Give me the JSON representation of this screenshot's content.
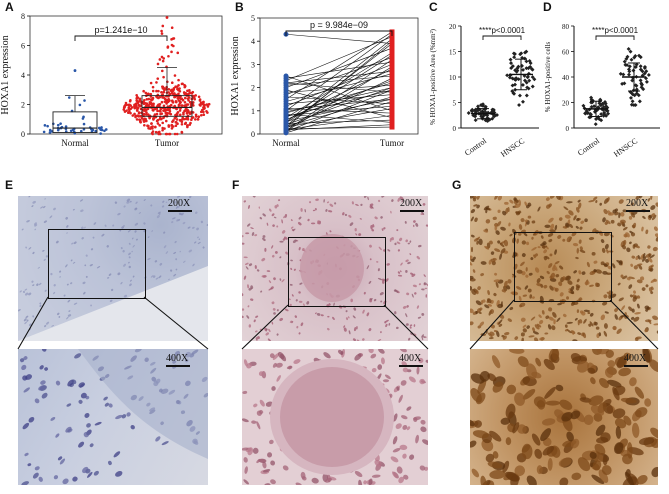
{
  "panels": {
    "A": {
      "label": "A"
    },
    "B": {
      "label": "B"
    },
    "C": {
      "label": "C"
    },
    "D": {
      "label": "D"
    },
    "E": {
      "label": "E",
      "mag_top": "200X",
      "mag_bottom": "400X"
    },
    "F": {
      "label": "F",
      "mag_top": "200X",
      "mag_bottom": "400X"
    },
    "G": {
      "label": "G",
      "mag_top": "200X",
      "mag_bottom": "400X"
    }
  },
  "colors": {
    "normal": "#2a57a8",
    "tumor": "#e02020",
    "control": "#222222",
    "hnscc": "#222222"
  },
  "chart_data": [
    {
      "id": "A",
      "type": "scatter",
      "categories": [
        "Normal",
        "Tumor"
      ],
      "ylabel": "HOXA1 expression",
      "ylim": [
        0,
        8
      ],
      "yticks": [
        0,
        2,
        4,
        6,
        8
      ],
      "annotation": "p=1.241e−10",
      "series": [
        {
          "name": "Normal",
          "median": 0.4,
          "q1": 0.1,
          "q3": 1.5,
          "whisker_low": 0.0,
          "whisker_high": 2.6,
          "max": 4.3,
          "n": 44
        },
        {
          "name": "Tumor",
          "median": 1.8,
          "q1": 1.2,
          "q3": 2.6,
          "whisker_low": 0.0,
          "whisker_high": 4.5,
          "max": 7.9,
          "n": 500
        }
      ]
    },
    {
      "id": "B",
      "type": "line",
      "categories": [
        "Normal",
        "Tumor"
      ],
      "ylabel": "HOXA1 expression",
      "ylim": [
        0,
        5
      ],
      "yticks": [
        0,
        1,
        2,
        3,
        4,
        5
      ],
      "annotation": "p = 9.984e−09",
      "pairs": [
        [
          0.1,
          1.9
        ],
        [
          0.15,
          3.2
        ],
        [
          0.2,
          0.8
        ],
        [
          0.25,
          2.4
        ],
        [
          0.3,
          1.1
        ],
        [
          0.35,
          3.9
        ],
        [
          0.4,
          2.0
        ],
        [
          0.45,
          0.6
        ],
        [
          0.5,
          4.1
        ],
        [
          0.55,
          1.5
        ],
        [
          0.6,
          2.8
        ],
        [
          0.7,
          3.5
        ],
        [
          0.8,
          1.2
        ],
        [
          0.9,
          2.2
        ],
        [
          1.0,
          4.3
        ],
        [
          1.1,
          0.9
        ],
        [
          1.2,
          3.0
        ],
        [
          1.3,
          1.7
        ],
        [
          1.4,
          2.6
        ],
        [
          1.5,
          4.4
        ],
        [
          1.6,
          1.3
        ],
        [
          1.7,
          3.3
        ],
        [
          1.8,
          2.1
        ],
        [
          1.9,
          0.7
        ],
        [
          2.0,
          3.7
        ],
        [
          2.1,
          2.5
        ],
        [
          2.2,
          1.8
        ],
        [
          2.3,
          4.2
        ],
        [
          2.4,
          3.1
        ],
        [
          2.5,
          1.0
        ],
        [
          0.05,
          1.4
        ],
        [
          0.12,
          2.9
        ],
        [
          0.22,
          0.3
        ],
        [
          0.33,
          1.6
        ],
        [
          0.48,
          3.4
        ],
        [
          0.62,
          2.3
        ],
        [
          0.75,
          1.9
        ],
        [
          0.85,
          0.5
        ],
        [
          4.3,
          3.9
        ],
        [
          2.2,
          2.7
        ],
        [
          1.05,
          1.5
        ],
        [
          0.28,
          4.0
        ],
        [
          0.18,
          0.4
        ],
        [
          0.95,
          2.0
        ]
      ]
    },
    {
      "id": "C",
      "type": "scatter",
      "categories": [
        "Control",
        "HNSCC"
      ],
      "ylabel": "% HOXA1-positive Area (%mm²)",
      "ylim": [
        0,
        20
      ],
      "yticks": [
        0,
        5,
        10,
        15,
        20
      ],
      "annotation": "****p<0.0001",
      "series": [
        {
          "name": "Control",
          "mean": 2.8,
          "sd": 1.0,
          "min": 0.5,
          "max": 5.0,
          "n": 60
        },
        {
          "name": "HNSCC",
          "mean": 10.5,
          "sd": 3.0,
          "min": 4.5,
          "max": 17.5,
          "n": 60
        }
      ]
    },
    {
      "id": "D",
      "type": "scatter",
      "categories": [
        "Control",
        "HNSCC"
      ],
      "ylabel": "% HOXA1-positive cells",
      "ylim": [
        0,
        80
      ],
      "yticks": [
        0,
        20,
        40,
        60,
        80
      ],
      "annotation": "****p<0.0001",
      "series": [
        {
          "name": "Control",
          "mean": 15,
          "sd": 6,
          "min": 3,
          "max": 30,
          "n": 60
        },
        {
          "name": "HNSCC",
          "mean": 40,
          "sd": 11,
          "min": 18,
          "max": 62,
          "n": 60
        }
      ]
    }
  ]
}
